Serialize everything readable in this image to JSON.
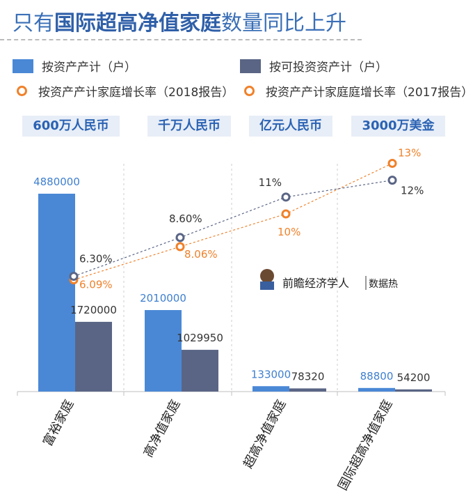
{
  "title": {
    "prefix": "只有",
    "bold": "国际超高净值家庭",
    "suffix": "数量同比上升"
  },
  "legend": [
    {
      "label": "按资产产计（户）",
      "kind": "bar",
      "color": "#4a88d6"
    },
    {
      "label": "按可投资资产计（户）",
      "kind": "bar",
      "color": "#5a6585"
    },
    {
      "label": "按资产产计家庭增长率（2018报告）",
      "kind": "ring",
      "color": "#f0812a"
    },
    {
      "label": "按资产产计家庭庭增长率（2017报告）",
      "kind": "ring",
      "color": "#f0812a"
    }
  ],
  "thresholds": [
    "600万人民币",
    "千万人民币",
    "亿元人民币",
    "3000万美金"
  ],
  "watermark": {
    "name": "前瞻经济学人",
    "tag": "数据热"
  },
  "chart_data": {
    "type": "bar",
    "categories": [
      "富裕家庭",
      "高净值家庭",
      "超高净值家庭",
      "国际超高净值家庭"
    ],
    "series": [
      {
        "name": "按资产产计（户）",
        "values": [
          4880000,
          2010000,
          133000,
          88800
        ],
        "labels": [
          "4880000",
          "2010000",
          "133000",
          "88800"
        ],
        "color": "#4a88d6"
      },
      {
        "name": "按可投资资产计（户）",
        "values": [
          1720000,
          1029950,
          78320,
          54200
        ],
        "labels": [
          "1720000",
          "1029950",
          "78320",
          "54200"
        ],
        "color": "#5a6585"
      }
    ],
    "lines": [
      {
        "name": "按资产产计家庭增长率（2018报告）",
        "values": [
          6.09,
          8.06,
          10,
          13
        ],
        "labels": [
          "6.09%",
          "8.06%",
          "10%",
          "13%"
        ],
        "color": "#f0812a",
        "label_color": "#f0812a"
      },
      {
        "name": "按资产产计家庭庭增长率（2017报告）",
        "values": [
          6.3,
          8.6,
          11,
          12
        ],
        "labels": [
          "6.30%",
          "8.60%",
          "11%",
          "12%"
        ],
        "color": "#5a6585",
        "label_color": "#333333"
      }
    ],
    "ylim": [
      0,
      5000000
    ]
  }
}
